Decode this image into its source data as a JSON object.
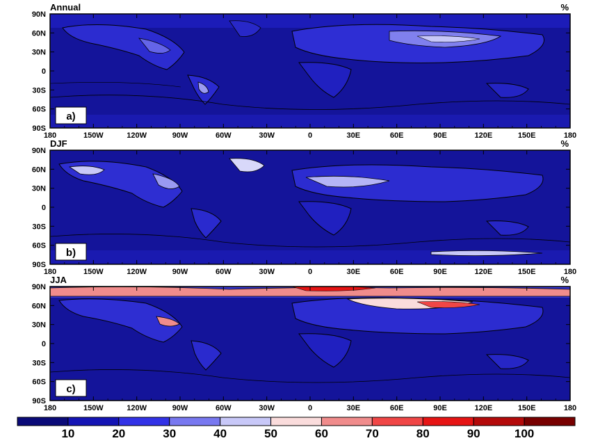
{
  "panels": [
    {
      "id": "a",
      "title": "Annual",
      "units": "%",
      "tag": "a)"
    },
    {
      "id": "b",
      "title": "DJF",
      "units": "%",
      "tag": "b)"
    },
    {
      "id": "c",
      "title": "JJA",
      "units": "%",
      "tag": "c)"
    }
  ],
  "lat_ticks": [
    "90N",
    "60N",
    "30N",
    "0",
    "30S",
    "60S",
    "90S"
  ],
  "lon_ticks": [
    "180",
    "150W",
    "120W",
    "90W",
    "60W",
    "30W",
    "0",
    "30E",
    "60E",
    "90E",
    "120E",
    "150E",
    "180"
  ],
  "colorbar": {
    "labels": [
      "10",
      "20",
      "30",
      "40",
      "50",
      "60",
      "70",
      "80",
      "90",
      "100"
    ],
    "colors": [
      "#0a0a78",
      "#1414b4",
      "#3232e6",
      "#7878f0",
      "#c8c8f8",
      "#fadcdc",
      "#f08c8c",
      "#f04646",
      "#e61414",
      "#b40a0a",
      "#780000"
    ]
  }
}
